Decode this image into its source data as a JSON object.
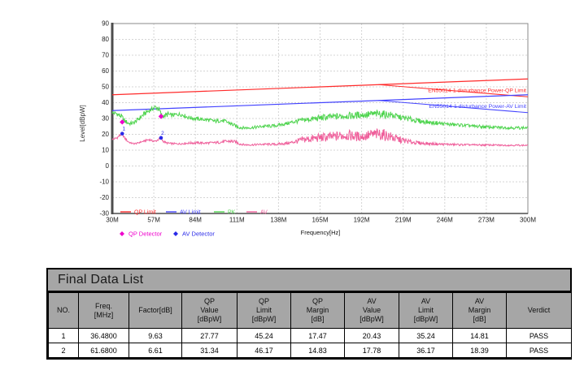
{
  "page": {
    "background": "#ffffff"
  },
  "chart_data": {
    "type": "line",
    "title": "",
    "xlabel": "Frequency[Hz]",
    "ylabel": "Level[dBpW]",
    "xlim_mhz": [
      30,
      300
    ],
    "ylim": [
      -30,
      90
    ],
    "grid": true,
    "x_ticks": [
      {
        "v": 30,
        "label": "30M"
      },
      {
        "v": 57,
        "label": "57M"
      },
      {
        "v": 84,
        "label": "84M"
      },
      {
        "v": 111,
        "label": "111M"
      },
      {
        "v": 138,
        "label": "138M"
      },
      {
        "v": 165,
        "label": "165M"
      },
      {
        "v": 192,
        "label": "192M"
      },
      {
        "v": 219,
        "label": "219M"
      },
      {
        "v": 246,
        "label": "246M"
      },
      {
        "v": 273,
        "label": "273M"
      },
      {
        "v": 300,
        "label": "300M"
      }
    ],
    "y_ticks": [
      {
        "v": 90,
        "label": "90"
      },
      {
        "v": 80,
        "label": "80"
      },
      {
        "v": 70,
        "label": "70"
      },
      {
        "v": 60,
        "label": "60"
      },
      {
        "v": 50,
        "label": "50"
      },
      {
        "v": 40,
        "label": "40"
      },
      {
        "v": 30,
        "label": "30"
      },
      {
        "v": 20,
        "label": "20"
      },
      {
        "v": 10,
        "label": "10"
      },
      {
        "v": 0,
        "label": "0"
      },
      {
        "v": -10,
        "label": "-10"
      },
      {
        "v": -20,
        "label": "-20"
      },
      {
        "v": -30,
        "label": "-30"
      }
    ],
    "limit_lines": [
      {
        "name": "QP Limit",
        "label": "EN55014-1 disturbance Power-QP Limit",
        "color": "#ff2a2a",
        "points_mhz_dbpw": [
          [
            30,
            45
          ],
          [
            300,
            55
          ]
        ]
      },
      {
        "name": "AV Limit",
        "label": "EN55014-1 disturbance Power-AV Limit",
        "color": "#4343ff",
        "points_mhz_dbpw": [
          [
            30,
            35
          ],
          [
            300,
            45
          ]
        ]
      }
    ],
    "series": [
      {
        "name": "PK",
        "color": "#4fd44f",
        "envelope_mhz_lo_hi": [
          [
            30,
            32.5,
            35
          ],
          [
            33,
            31.5,
            34.5
          ],
          [
            36,
            29.5,
            33
          ],
          [
            38,
            27,
            30
          ],
          [
            41,
            25.5,
            28
          ],
          [
            44,
            26,
            28.5
          ],
          [
            47,
            28,
            31
          ],
          [
            50,
            30.5,
            34
          ],
          [
            53,
            33,
            36
          ],
          [
            56,
            34.5,
            37.5
          ],
          [
            58,
            36,
            38.8
          ],
          [
            60,
            34,
            38.5
          ],
          [
            62,
            30,
            34
          ],
          [
            64,
            30,
            33
          ],
          [
            66,
            31,
            34.5
          ],
          [
            68,
            30.5,
            33.5
          ],
          [
            70,
            31,
            33.5
          ],
          [
            73,
            31.5,
            34
          ],
          [
            76,
            31,
            33.5
          ],
          [
            79,
            29.5,
            32
          ],
          [
            82,
            29,
            31.5
          ],
          [
            85,
            28.5,
            31
          ],
          [
            88,
            28.5,
            30.5
          ],
          [
            91,
            28,
            30.5
          ],
          [
            94,
            27.5,
            30
          ],
          [
            97,
            27,
            29.5
          ],
          [
            100,
            27.5,
            30
          ],
          [
            103,
            27,
            29.5
          ],
          [
            106,
            26,
            28.5
          ],
          [
            109,
            24.5,
            27
          ],
          [
            112,
            23.5,
            25.5
          ],
          [
            115,
            23.2,
            25
          ],
          [
            118,
            23.2,
            25
          ],
          [
            121,
            23.4,
            25.2
          ],
          [
            124,
            23.5,
            25.5
          ],
          [
            127,
            24,
            26
          ],
          [
            130,
            24,
            26.2
          ],
          [
            133,
            24.2,
            26.2
          ],
          [
            136,
            24.5,
            26.5
          ],
          [
            139,
            25,
            27
          ],
          [
            142,
            25.5,
            27.5
          ],
          [
            145,
            26,
            28.5
          ],
          [
            148,
            26.5,
            29.5
          ],
          [
            151,
            27,
            30
          ],
          [
            154,
            27.5,
            30.5
          ],
          [
            157,
            27.5,
            31
          ],
          [
            160,
            28,
            31.5
          ],
          [
            163,
            28,
            32
          ],
          [
            166,
            28.5,
            32.5
          ],
          [
            169,
            28.5,
            33
          ],
          [
            172,
            29,
            33
          ],
          [
            175,
            29,
            33.5
          ],
          [
            178,
            29,
            33.5
          ],
          [
            181,
            29.5,
            34
          ],
          [
            184,
            29.5,
            34
          ],
          [
            187,
            29.5,
            34
          ],
          [
            190,
            30,
            34.5
          ],
          [
            193,
            30,
            34.5
          ],
          [
            196,
            30,
            35
          ],
          [
            199,
            30.5,
            35
          ],
          [
            202,
            30.5,
            35.3
          ],
          [
            205,
            30.5,
            35.3
          ],
          [
            208,
            30,
            35
          ],
          [
            211,
            30,
            34.5
          ],
          [
            214,
            29.5,
            33.5
          ],
          [
            217,
            29,
            32.5
          ],
          [
            220,
            28.5,
            32
          ],
          [
            223,
            28,
            31.5
          ],
          [
            226,
            27.5,
            30.5
          ],
          [
            229,
            27,
            30
          ],
          [
            232,
            26.5,
            29.5
          ],
          [
            235,
            26.5,
            29
          ],
          [
            238,
            26,
            28.5
          ],
          [
            241,
            26,
            28.5
          ],
          [
            244,
            25.5,
            28
          ],
          [
            247,
            25.5,
            27.5
          ],
          [
            250,
            25,
            27.5
          ],
          [
            253,
            25,
            27
          ],
          [
            256,
            25,
            27
          ],
          [
            259,
            24.5,
            26.5
          ],
          [
            262,
            24.5,
            26.5
          ],
          [
            265,
            24,
            26
          ],
          [
            268,
            24,
            26
          ],
          [
            271,
            23.8,
            25.8
          ],
          [
            274,
            23.5,
            25.5
          ],
          [
            277,
            23.5,
            25.5
          ],
          [
            280,
            23.5,
            25.3
          ],
          [
            283,
            23.3,
            25.3
          ],
          [
            286,
            23.3,
            25.2
          ],
          [
            289,
            23.2,
            25.2
          ],
          [
            292,
            23.2,
            25
          ],
          [
            295,
            23.2,
            25
          ],
          [
            298,
            23.2,
            25
          ],
          [
            300,
            23.2,
            25
          ]
        ]
      },
      {
        "name": "AV",
        "color": "#ef5f9b",
        "envelope_mhz_lo_hi": [
          [
            30,
            16.3,
            17.3
          ],
          [
            33,
            17,
            18.5
          ],
          [
            35,
            18.5,
            20.3
          ],
          [
            36.5,
            19.5,
            20.8
          ],
          [
            38,
            17,
            18.5
          ],
          [
            40,
            15,
            16.2
          ],
          [
            42,
            14,
            15
          ],
          [
            44,
            13.6,
            14.6
          ],
          [
            46,
            13.8,
            14.8
          ],
          [
            48,
            14.5,
            15.5
          ],
          [
            50,
            15,
            16
          ],
          [
            52,
            15.5,
            16.8
          ],
          [
            54,
            16,
            17.5
          ],
          [
            56,
            15.3,
            16.5
          ],
          [
            58,
            15,
            16.2
          ],
          [
            60,
            16,
            17.5
          ],
          [
            61.7,
            16.8,
            18.2
          ],
          [
            63,
            15,
            16.5
          ],
          [
            65,
            14,
            15.2
          ],
          [
            68,
            13.6,
            14.8
          ],
          [
            71,
            13.5,
            14.6
          ],
          [
            74,
            13.5,
            14.6
          ],
          [
            77,
            13.6,
            15
          ],
          [
            80,
            13.8,
            15.2
          ],
          [
            83,
            13.8,
            15.4
          ],
          [
            86,
            13.8,
            15.4
          ],
          [
            89,
            13.8,
            15.2
          ],
          [
            92,
            13.8,
            15.2
          ],
          [
            95,
            14,
            15.4
          ],
          [
            98,
            14,
            15.6
          ],
          [
            101,
            14.2,
            16
          ],
          [
            104,
            14.5,
            16.5
          ],
          [
            107,
            14.5,
            16.8
          ],
          [
            110,
            14.2,
            16.2
          ],
          [
            113,
            13.2,
            14.6
          ],
          [
            116,
            12.8,
            14
          ],
          [
            119,
            12.8,
            14
          ],
          [
            122,
            12.8,
            14
          ],
          [
            125,
            13,
            14.2
          ],
          [
            128,
            13,
            14.4
          ],
          [
            131,
            13,
            14.4
          ],
          [
            134,
            13,
            14.4
          ],
          [
            137,
            13,
            14.5
          ],
          [
            140,
            13.2,
            14.8
          ],
          [
            143,
            13.4,
            15.2
          ],
          [
            146,
            13.6,
            15.8
          ],
          [
            149,
            14,
            17
          ],
          [
            152,
            14.2,
            18
          ],
          [
            155,
            14.5,
            19
          ],
          [
            158,
            14.5,
            19.5
          ],
          [
            161,
            14.8,
            20
          ],
          [
            164,
            15,
            20.5
          ],
          [
            167,
            15,
            21
          ],
          [
            170,
            15.2,
            21
          ],
          [
            173,
            15.4,
            21.5
          ],
          [
            176,
            15.5,
            22
          ],
          [
            179,
            16,
            22.5
          ],
          [
            182,
            16,
            23
          ],
          [
            185,
            15.8,
            22.5
          ],
          [
            188,
            15.5,
            22
          ],
          [
            191,
            15.5,
            21.5
          ],
          [
            194,
            15.5,
            22
          ],
          [
            197,
            16,
            23
          ],
          [
            200,
            16.2,
            23.5
          ],
          [
            203,
            16.3,
            24
          ],
          [
            206,
            16,
            23.5
          ],
          [
            209,
            15.5,
            22.5
          ],
          [
            212,
            15,
            21
          ],
          [
            215,
            14.5,
            19.5
          ],
          [
            218,
            14.2,
            18.5
          ],
          [
            221,
            14,
            17.5
          ],
          [
            224,
            13.8,
            16.5
          ],
          [
            227,
            13.6,
            16
          ],
          [
            230,
            13.4,
            15.5
          ],
          [
            233,
            13.3,
            15.2
          ],
          [
            236,
            13.2,
            15
          ],
          [
            239,
            13.2,
            14.8
          ],
          [
            242,
            13,
            14.6
          ],
          [
            245,
            13,
            14.5
          ],
          [
            248,
            13,
            14.4
          ],
          [
            251,
            12.9,
            14.2
          ],
          [
            254,
            12.9,
            14.2
          ],
          [
            257,
            12.8,
            14
          ],
          [
            260,
            12.8,
            14
          ],
          [
            263,
            12.8,
            13.9
          ],
          [
            266,
            12.8,
            13.9
          ],
          [
            269,
            12.7,
            13.8
          ],
          [
            272,
            12.7,
            13.8
          ],
          [
            275,
            12.7,
            13.8
          ],
          [
            278,
            12.7,
            13.7
          ],
          [
            281,
            12.6,
            13.7
          ],
          [
            284,
            12.6,
            13.6
          ],
          [
            287,
            12.6,
            13.6
          ],
          [
            290,
            12.6,
            13.6
          ],
          [
            293,
            12.6,
            13.6
          ],
          [
            296,
            12.6,
            13.5
          ],
          [
            300,
            12.6,
            13.5
          ]
        ]
      }
    ],
    "markers": [
      {
        "no": "1",
        "freq_mhz": 36.48,
        "qp_dbpw": 27.77,
        "av_dbpw": 20.43
      },
      {
        "no": "2",
        "freq_mhz": 61.68,
        "qp_dbpw": 31.34,
        "av_dbpw": 17.78
      }
    ],
    "legend": [
      {
        "label": "QP Limit",
        "color": "#ff2a2a"
      },
      {
        "label": "AV Limit",
        "color": "#4343ff"
      },
      {
        "label": "PK",
        "color": "#4fd44f"
      },
      {
        "label": "AV",
        "color": "#ef5f9b"
      }
    ],
    "detector_legend": [
      {
        "label": "QP Detector",
        "color": "#ee00cc"
      },
      {
        "label": "AV Detector",
        "color": "#2929e8"
      }
    ]
  },
  "table": {
    "title": "Final Data List",
    "columns": [
      {
        "lines": [
          "NO."
        ]
      },
      {
        "lines": [
          "Freq.",
          "[MHz]"
        ]
      },
      {
        "lines": [
          "Factor[dB]"
        ]
      },
      {
        "lines": [
          "QP",
          "Value",
          "[dBpW]"
        ]
      },
      {
        "lines": [
          "QP",
          "Limit",
          "[dBpW]"
        ]
      },
      {
        "lines": [
          "QP",
          "Margin",
          "[dB]"
        ]
      },
      {
        "lines": [
          "AV",
          "Value",
          "[dBpW]"
        ]
      },
      {
        "lines": [
          "AV",
          "Limit",
          "[dBpW]"
        ]
      },
      {
        "lines": [
          "AV",
          "Margin",
          "[dB]"
        ]
      },
      {
        "lines": [
          "Verdict"
        ]
      }
    ],
    "rows": [
      [
        "1",
        "36.4800",
        "9.63",
        "27.77",
        "45.24",
        "17.47",
        "20.43",
        "35.24",
        "14.81",
        "PASS"
      ],
      [
        "2",
        "61.6800",
        "6.61",
        "31.34",
        "46.17",
        "14.83",
        "17.78",
        "36.17",
        "18.39",
        "PASS"
      ]
    ]
  }
}
